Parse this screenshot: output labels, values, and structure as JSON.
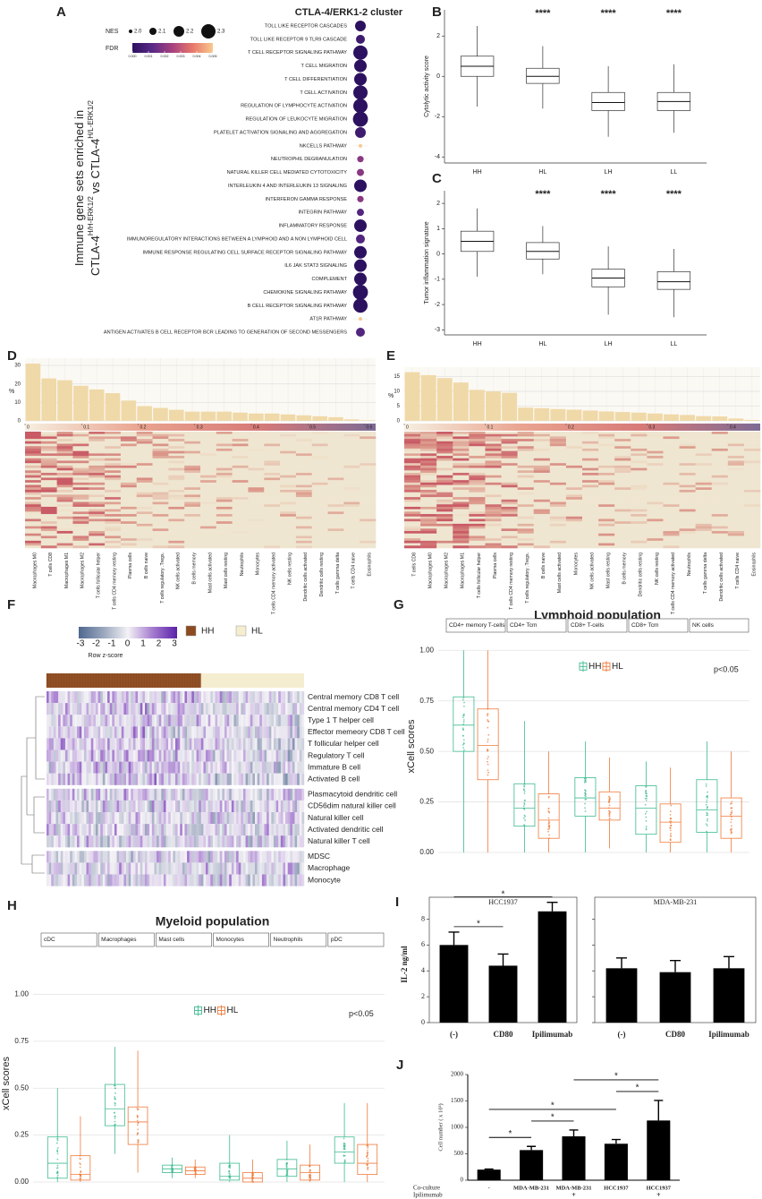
{
  "chart_data": [
    {
      "type": "dot",
      "panel_label": "A",
      "title": "CTLA-4/ERK1-2 cluster",
      "y_label": "Immune gene sets enriched in",
      "y_label_parts": [
        "CTLA-4",
        "H/H-ERK1/2",
        "vs CTLA-4",
        "H/L-ERK1/2"
      ],
      "categories": [
        "TOLL LIKE RECEPTOR CASCADES",
        "TOLL LIKE RECEPTOR 9 TLR9 CASCADE",
        "T CELL RECEPTOR SIGNALING PATHWAY",
        "T CELL MIGRATION",
        "T CELL DIFFERENTIATION",
        "T CELL ACTIVATION",
        "REGULATION OF LYMPHOCYTE ACTIVATION",
        "REGULATION OF LEUKOCYTE MIGRATION",
        "PLATELET ACTIVATION SIGNALING AND AGGREGATION",
        "NKCELLS PATHWAY",
        "NEUTROPHIL DEGRANULATION",
        "NATURAL KILLER CELL MEDIATED CYTOTOXICITY",
        "INTERLEUKIN 4 AND INTERLEUKIN 13 SIGNALING",
        "INTERFERON GAMMA RESPONSE",
        "INTEGRIN PATHWAY",
        "INFLAMMATORY RESPONSE",
        "IMMUNOREGULATORY INTERACTIONS BETWEEN A LYMPHOID AND A NON LYMPHOID CELL",
        "IMMUNE RESPONSE REGULATING CELL SURFACE RECEPTOR SIGNALING PATHWAY",
        "IL6 JAK STAT3 SIGNALING",
        "COMPLEMENT",
        "CHEMOKINE SIGNALING PATHWAY",
        "B CELL RECEPTOR SIGNALING PATHWAY",
        "AT1R PATHWAY",
        "ANTIGEN ACTIVATES B CELL RECEPTOR BCR LEADING TO GENERATION OF SECOND MESSENGERS"
      ],
      "values": [
        2.2,
        2.15,
        2.3,
        2.25,
        2.25,
        2.3,
        2.3,
        2.32,
        2.2,
        2.0,
        2.08,
        2.1,
        2.25,
        2.08,
        2.1,
        2.25,
        2.15,
        2.25,
        2.25,
        2.25,
        2.32,
        2.3,
        2.0,
        2.15
      ],
      "fdr": [
        0,
        0.0005,
        0,
        0,
        0,
        0,
        0,
        0,
        0.0005,
        0.005,
        0.002,
        0.002,
        0,
        0.002,
        0.001,
        0,
        0.001,
        0,
        0,
        0,
        0,
        0,
        0.005,
        0.001
      ],
      "size_title": "NES",
      "size_ticks": [
        {
          "value": 2,
          "label": "2.0"
        },
        2.1,
        2.2,
        2.3
      ],
      "color_title": "FDR",
      "color_ticks": [
        {
          "value": 0,
          "label": "0.000"
        },
        {
          "value": 0.001,
          "label": "0.001"
        },
        {
          "value": 0.002,
          "label": "0.002"
        },
        {
          "value": 0.003,
          "label": "0.003"
        },
        {
          "value": 0.004,
          "label": "0.004"
        },
        {
          "value": 0.005,
          "label": "0.005"
        }
      ],
      "colors": [
        "#2c1160",
        "#5b2a86",
        "#a8427f",
        "#e8786c",
        "#f8c98c"
      ]
    },
    {
      "type": "box",
      "panel_label": "B",
      "y_label": "Cytolytic activity score",
      "categories": [
        "HH",
        "HL",
        "LH",
        "LL"
      ],
      "low": [
        -1.5,
        -1.6,
        -3,
        -2.8
      ],
      "q1": [
        0,
        -0.35,
        -1.7,
        -1.7
      ],
      "median": [
        0.5,
        0,
        -1.3,
        -1.25
      ],
      "q3": [
        1,
        0.4,
        -0.8,
        -0.8
      ],
      "high": [
        2.5,
        1.5,
        0.5,
        0.6
      ],
      "annotations": [
        null,
        "****",
        "****",
        "****"
      ],
      "ylim": [
        -4.3,
        3.3
      ],
      "yticks": [
        -4,
        -2,
        0,
        2
      ]
    },
    {
      "type": "box",
      "panel_label": "C",
      "y_label": "Tumor inflammation signature",
      "categories": [
        "HH",
        "HL",
        "LH",
        "LL"
      ],
      "low": [
        -0.9,
        -0.8,
        -2.4,
        -2.5
      ],
      "q1": [
        0.1,
        -0.2,
        -1.3,
        -1.4
      ],
      "median": [
        0.5,
        0.1,
        -0.95,
        -1.1
      ],
      "q3": [
        0.9,
        0.45,
        -0.6,
        -0.7
      ],
      "high": [
        1.8,
        1.1,
        0.3,
        0.2
      ],
      "annotations": [
        null,
        "****",
        "****",
        "****"
      ],
      "ylim": [
        -3.2,
        2.5
      ],
      "yticks": [
        -3,
        -2,
        -1,
        0,
        1,
        2
      ]
    },
    {
      "type": "bar_heatmap",
      "panel_label": "D",
      "y_label": "%",
      "color": "#f0d9a8",
      "categories": [
        "Macrophages M0",
        "T cells CD8",
        "Macrophages M1",
        "Macrophages M2",
        "T cells follicular helper",
        "T cells CD4 memory resting",
        "Plasma cells",
        "B cells naive",
        "T cells regulatory .Tregs.",
        "NK cells activated",
        "B cells memory",
        "Mast cells activated",
        "Mast cells resting",
        "Neutrophils",
        "Monocytes",
        "T cells CD4 memory activated",
        "NK cells resting",
        "Dendritic cells activated",
        "Dendritic cells resting",
        "T cells gamma delta",
        "T cells CD4 naive",
        "Eosinophils"
      ],
      "values": [
        31,
        23,
        22,
        19,
        17,
        15,
        11,
        8,
        7,
        6,
        5,
        5,
        5,
        4.5,
        4,
        4,
        3.5,
        3,
        2.5,
        2,
        0.8,
        0.3
      ],
      "ylim": [
        0,
        32
      ],
      "yticks": [
        0,
        10,
        20,
        30
      ],
      "colorbar_lim": [
        0,
        0.62
      ],
      "colorbar_ticks": [
        0,
        0.1,
        0.2,
        0.3,
        0.4,
        0.5,
        0.6
      ],
      "colorbar_colors": [
        "#f6efe0",
        "#e9a38f",
        "#d77a78",
        "#7d6a94"
      ]
    },
    {
      "type": "bar_heatmap",
      "panel_label": "E",
      "y_label": "%",
      "color": "#f0d9a8",
      "categories": [
        "T cells CD8",
        "Macrophages M0",
        "Macrophages M2",
        "Macrophages M1",
        "T cells follicular helper",
        "Plasma cells",
        "T cells CD4 memory resting",
        "T cells regulatory .Tregs.",
        "B cells naive",
        "Mast cells activated",
        "Monocytes",
        "NK cells activated",
        "Mast cells resting",
        "B cells memory",
        "Dendritic cells resting",
        "NK cells resting",
        "T cells CD4 memory activated",
        "Neutrophils",
        "T cells gamma delta",
        "Dendritic cells activated",
        "T cells CD4 naive",
        "Eosinophils"
      ],
      "values": [
        16.5,
        15.5,
        14.5,
        13,
        10.5,
        10,
        9.5,
        4.5,
        4.3,
        4,
        3.8,
        3.5,
        3.2,
        3,
        2.8,
        2.5,
        2.2,
        2,
        1.6,
        1.5,
        0.8,
        0.3
      ],
      "ylim": [
        0,
        17
      ],
      "yticks": [
        0,
        5,
        10,
        15
      ],
      "colorbar_lim": [
        0,
        0.44
      ],
      "colorbar_ticks": [
        0,
        0.1,
        0.2,
        0.3,
        0.4
      ],
      "colorbar_colors": [
        "#f6efe0",
        "#e9a38f",
        "#d77a78",
        "#7d6a94"
      ]
    },
    {
      "type": "heatmap",
      "panel_label": "F",
      "legend_title": "Row z-score",
      "legend_ticks": [
        -3,
        -2,
        -1,
        0,
        1,
        2,
        3
      ],
      "legend_colors": [
        "#4f6890",
        "#9aa6bd",
        "#f4f2f6",
        "#a57ccf",
        "#5a22a8"
      ],
      "groups": [
        {
          "name": "HH",
          "color": "#8b4a20"
        },
        {
          "name": "HL",
          "color": "#f4edcf"
        }
      ],
      "rows": [
        "Central memory CD8 T cell",
        "Central memory CD4 T cell",
        "Type 1 T helper cell",
        "Effector memeory CD8 T cell",
        "T follicular helper cell",
        "Regulatory T cell",
        "Immature  B cell",
        "Activated B cell",
        "Plasmacytoid dendritic cell",
        "CD56dim natural killer cell",
        "Natural killer cell",
        "Activated dendritic cell",
        "Natural killer T cell",
        "MDSC",
        "Macrophage",
        "Monocyte"
      ]
    },
    {
      "type": "grouped_box",
      "panel_label": "G",
      "title": "Lymphoid population",
      "y_label": "xCell scores",
      "annotation": "p<0.05",
      "categories": [
        "CD4+ memory T-cells",
        "CD4+ Tcm",
        "CD8+ T-cells",
        "CD8+ Tcm",
        "NK cells"
      ],
      "series": [
        {
          "name": "HH",
          "color": "#3dbb91",
          "low": [
            0,
            0,
            0,
            0,
            0
          ],
          "q1": [
            0.5,
            0.13,
            0.18,
            0.09,
            0.1
          ],
          "median": [
            0.63,
            0.22,
            0.27,
            0.22,
            0.21
          ],
          "q3": [
            0.77,
            0.34,
            0.37,
            0.33,
            0.36
          ],
          "high": [
            1,
            0.65,
            0.55,
            0.45,
            0.55
          ]
        },
        {
          "name": "HL",
          "color": "#f07a3a",
          "low": [
            0,
            0,
            0.02,
            0,
            0
          ],
          "q1": [
            0.36,
            0.07,
            0.16,
            0.05,
            0.07
          ],
          "median": [
            0.53,
            0.16,
            0.22,
            0.15,
            0.18
          ],
          "q3": [
            0.71,
            0.29,
            0.3,
            0.24,
            0.27
          ],
          "high": [
            1,
            0.5,
            0.47,
            0.42,
            0.5
          ]
        }
      ],
      "ylim": [
        0,
        1.05
      ],
      "yticks": [
        {
          "value": 0,
          "label": "0.00"
        },
        {
          "value": 0.25,
          "label": "0.25"
        },
        {
          "value": 0.5,
          "label": "0.50"
        },
        {
          "value": 0.75,
          "label": "0.75"
        },
        {
          "value": 1,
          "label": "1.00"
        }
      ]
    },
    {
      "type": "grouped_box",
      "panel_label": "H",
      "title": "Myeloid population",
      "y_label": "xCell scores",
      "annotation": "p<0.05",
      "categories": [
        "cDC",
        "Macrophages",
        "Mast cells",
        "Monocytes",
        "Neutrophils",
        "pDC"
      ],
      "series": [
        {
          "name": "HH",
          "color": "#3dbb91",
          "low": [
            0,
            0.15,
            0.02,
            0,
            0,
            0
          ],
          "q1": [
            0.02,
            0.3,
            0.05,
            0.01,
            0.03,
            0.1
          ],
          "median": [
            0.1,
            0.39,
            0.07,
            0.03,
            0.07,
            0.16
          ],
          "q3": [
            0.24,
            0.52,
            0.09,
            0.1,
            0.12,
            0.24
          ],
          "high": [
            0.5,
            0.72,
            0.13,
            0.25,
            0.22,
            0.42
          ]
        },
        {
          "name": "HL",
          "color": "#f07a3a",
          "low": [
            0,
            0.05,
            0.02,
            0,
            0,
            0
          ],
          "q1": [
            0.01,
            0.2,
            0.04,
            0,
            0.01,
            0.04
          ],
          "median": [
            0.04,
            0.32,
            0.06,
            0.02,
            0.05,
            0.1
          ],
          "q3": [
            0.14,
            0.4,
            0.08,
            0.05,
            0.09,
            0.2
          ],
          "high": [
            0.35,
            0.7,
            0.12,
            0.12,
            0.2,
            0.42
          ]
        }
      ],
      "ylim": [
        0,
        1.05
      ],
      "yticks": [
        {
          "value": 0,
          "label": "0.00"
        },
        {
          "value": 0.25,
          "label": "0.25"
        },
        {
          "value": 0.5,
          "label": "0.50"
        },
        {
          "value": 0.75,
          "label": "0.75"
        },
        {
          "value": 1,
          "label": "1.00"
        }
      ]
    },
    {
      "type": "bar_pair",
      "panel_label": "I",
      "y_label": "IL-2 ng/ml",
      "categories": [
        "(-)",
        "CD80",
        "Ipilimumab"
      ],
      "color": "#000000",
      "subplots": [
        {
          "title": "HCC1937",
          "values": [
            6,
            4.4,
            8.6
          ],
          "errors": [
            1,
            0.9,
            0.7
          ],
          "pairs": [
            [
              0,
              1
            ],
            [
              0,
              2
            ]
          ],
          "pair_labels": [
            "*",
            "*"
          ]
        },
        {
          "title": "MDA-MB-231",
          "values": [
            4.2,
            3.9,
            4.2
          ],
          "errors": [
            0.8,
            0.9,
            0.9
          ],
          "pairs": [],
          "pair_labels": []
        }
      ],
      "ylim": [
        0,
        9
      ],
      "yticks": [
        0,
        2,
        4,
        6,
        8
      ]
    },
    {
      "type": "bar",
      "panel_label": "J",
      "y_label": "Cell number ( x 10³)",
      "color": "#000000",
      "row_labels": [
        "Co-culture",
        "Ipilimumab"
      ],
      "categories": [
        "-",
        "MDA-MB-231",
        "MDA-MB-231",
        "HCC1937",
        "HCC1937"
      ],
      "second_row": [
        null,
        null,
        "+",
        null,
        "+"
      ],
      "values": [
        200,
        570,
        830,
        690,
        1130
      ],
      "errors": [
        10,
        70,
        120,
        80,
        380
      ],
      "pairs": [
        [
          0,
          1
        ],
        [
          1,
          2
        ],
        [
          0,
          3
        ],
        [
          3,
          4
        ],
        [
          2,
          4
        ]
      ],
      "pair_labels": [
        "*",
        "*",
        "*",
        "*",
        "*"
      ],
      "ylim": [
        0,
        2000
      ],
      "yticks": [
        0,
        500,
        1000,
        1500,
        2000
      ]
    }
  ]
}
